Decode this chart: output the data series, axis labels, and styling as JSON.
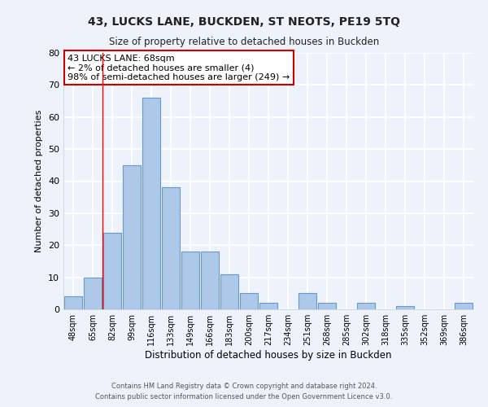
{
  "title": "43, LUCKS LANE, BUCKDEN, ST NEOTS, PE19 5TQ",
  "subtitle": "Size of property relative to detached houses in Buckden",
  "xlabel": "Distribution of detached houses by size in Buckden",
  "ylabel": "Number of detached properties",
  "bin_labels": [
    "48sqm",
    "65sqm",
    "82sqm",
    "99sqm",
    "116sqm",
    "133sqm",
    "149sqm",
    "166sqm",
    "183sqm",
    "200sqm",
    "217sqm",
    "234sqm",
    "251sqm",
    "268sqm",
    "285sqm",
    "302sqm",
    "318sqm",
    "335sqm",
    "352sqm",
    "369sqm",
    "386sqm"
  ],
  "bar_heights": [
    4,
    10,
    24,
    45,
    66,
    38,
    18,
    18,
    11,
    5,
    2,
    0,
    5,
    2,
    0,
    2,
    0,
    1,
    0,
    0,
    2
  ],
  "bar_color": "#adc8e8",
  "bar_edge_color": "#6699cc",
  "ylim": [
    0,
    80
  ],
  "yticks": [
    0,
    10,
    20,
    30,
    40,
    50,
    60,
    70,
    80
  ],
  "red_line_x": 1.5,
  "annotation_text": "43 LUCKS LANE: 68sqm\n← 2% of detached houses are smaller (4)\n98% of semi-detached houses are larger (249) →",
  "annotation_box_color": "#ffffff",
  "annotation_box_edge_color": "#cc0000",
  "footer_line1": "Contains HM Land Registry data © Crown copyright and database right 2024.",
  "footer_line2": "Contains public sector information licensed under the Open Government Licence v3.0.",
  "background_color": "#eef2fa",
  "grid_color": "#ffffff"
}
